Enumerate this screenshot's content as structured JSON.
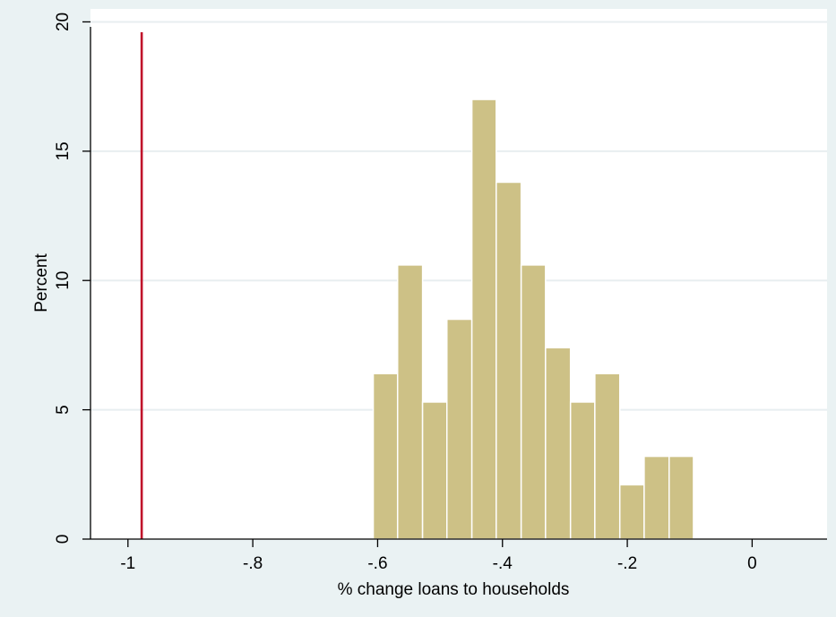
{
  "chart_data": {
    "type": "bar",
    "subtype": "histogram",
    "xlabel": "% change loans to households",
    "ylabel": "Percent",
    "xlim": [
      -1.06,
      0.12
    ],
    "ylim": [
      0,
      20.5
    ],
    "x_ticks": [
      {
        "value": -1,
        "label": "-1"
      },
      {
        "value": -0.8,
        "label": "-.8"
      },
      {
        "value": -0.6,
        "label": "-.6"
      },
      {
        "value": -0.4,
        "label": "-.4"
      },
      {
        "value": -0.2,
        "label": "-.2"
      },
      {
        "value": 0,
        "label": "0"
      }
    ],
    "y_ticks": [
      {
        "value": 0,
        "label": "0"
      },
      {
        "value": 5,
        "label": "5"
      },
      {
        "value": 10,
        "label": "10"
      },
      {
        "value": 15,
        "label": "15"
      },
      {
        "value": 20,
        "label": "20"
      }
    ],
    "bins": [
      {
        "start": -0.607,
        "end": -0.568,
        "value": 6.4
      },
      {
        "start": -0.568,
        "end": -0.528,
        "value": 10.6
      },
      {
        "start": -0.528,
        "end": -0.489,
        "value": 5.3
      },
      {
        "start": -0.489,
        "end": -0.449,
        "value": 8.5
      },
      {
        "start": -0.449,
        "end": -0.41,
        "value": 17.0
      },
      {
        "start": -0.41,
        "end": -0.37,
        "value": 13.8
      },
      {
        "start": -0.37,
        "end": -0.331,
        "value": 10.6
      },
      {
        "start": -0.331,
        "end": -0.291,
        "value": 7.4
      },
      {
        "start": -0.291,
        "end": -0.252,
        "value": 5.3
      },
      {
        "start": -0.252,
        "end": -0.212,
        "value": 6.4
      },
      {
        "start": -0.212,
        "end": -0.173,
        "value": 2.1
      },
      {
        "start": -0.173,
        "end": -0.133,
        "value": 3.2
      },
      {
        "start": -0.133,
        "end": -0.094,
        "value": 3.2
      }
    ],
    "reference_line": {
      "x": -0.978,
      "color": "#c0102a"
    },
    "grid": true,
    "colors": {
      "bar_fill": "#cdc186",
      "bar_stroke": "#ffffff",
      "background": "#eaf2f3",
      "plot_background": "#ffffff",
      "grid": "#e8eef0",
      "axis": "#000000"
    }
  }
}
